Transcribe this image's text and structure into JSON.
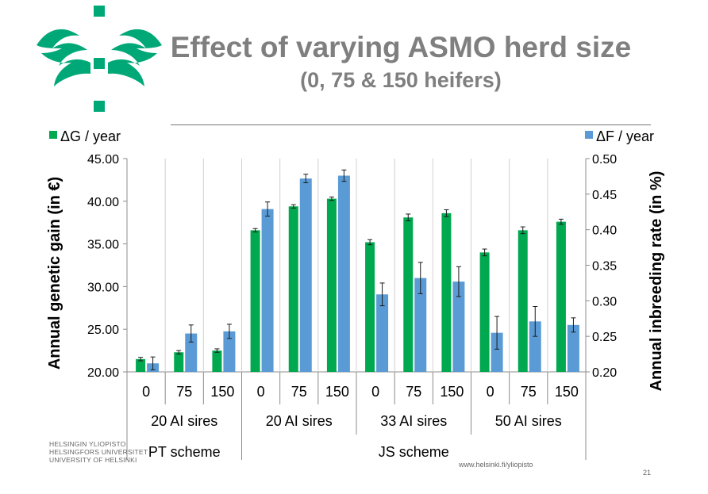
{
  "slide": {
    "title": "Effect of varying ASMO herd size",
    "subtitle": "(0, 75 & 150 heifers)",
    "footer_university": [
      "HELSINGIN YLIOPISTO",
      "HELSINGFORS UNIVERSITET",
      "UNIVERSITY OF HELSINKI"
    ],
    "footer_url": "www.helsinki.fi/yliopisto",
    "page_number": "21",
    "brand_color": "#00a878"
  },
  "chart_data": {
    "type": "bar",
    "ylabel": "Annual genetic gain (in €)",
    "y2label": "Annual inbreeding rate (in %)",
    "ylim": [
      20,
      45
    ],
    "y2lim": [
      0.2,
      0.5
    ],
    "yticks": [
      "20.00",
      "25.00",
      "30.00",
      "35.00",
      "40.00",
      "45.00"
    ],
    "y2ticks": [
      "0.20",
      "0.25",
      "0.30",
      "0.35",
      "0.40",
      "0.45",
      "0.50"
    ],
    "categories": [
      "0",
      "75",
      "150",
      "0",
      "75",
      "150",
      "0",
      "75",
      "150",
      "0",
      "75",
      "150"
    ],
    "groups_level2": [
      {
        "label": "20 AI sires",
        "span": 3
      },
      {
        "label": "20 AI sires",
        "span": 3
      },
      {
        "label": "33 AI sires",
        "span": 3
      },
      {
        "label": "50 AI sires",
        "span": 3
      }
    ],
    "groups_level3": [
      {
        "label": "PT scheme",
        "span": 3
      },
      {
        "label": "JS scheme",
        "span": 9
      }
    ],
    "legend_placement": "top",
    "grid": "vertical category separators",
    "series": [
      {
        "name": "ΔG / year",
        "axis": "left",
        "color": "#00a84f",
        "values": [
          21.5,
          22.3,
          22.5,
          36.6,
          39.4,
          40.3,
          35.2,
          38.1,
          38.6,
          34.0,
          36.6,
          37.6
        ],
        "errors": [
          0.2,
          0.2,
          0.2,
          0.2,
          0.2,
          0.2,
          0.3,
          0.4,
          0.4,
          0.4,
          0.4,
          0.3
        ]
      },
      {
        "name": "ΔF / year",
        "axis": "right",
        "color": "#5b9bd5",
        "values": [
          0.212,
          0.254,
          0.257,
          0.429,
          0.472,
          0.476,
          0.309,
          0.332,
          0.327,
          0.255,
          0.271,
          0.266
        ],
        "errors": [
          0.009,
          0.012,
          0.01,
          0.01,
          0.006,
          0.008,
          0.016,
          0.022,
          0.021,
          0.023,
          0.021,
          0.01
        ]
      }
    ]
  }
}
